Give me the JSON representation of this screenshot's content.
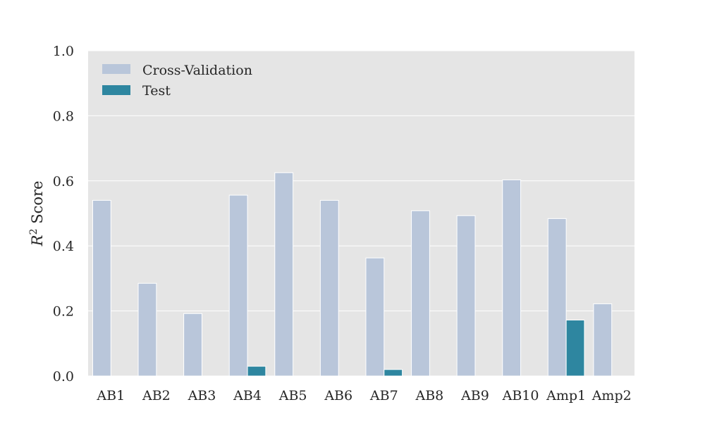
{
  "chart_data": {
    "type": "bar",
    "title": "",
    "xlabel": "",
    "ylabel_italic": "R",
    "ylabel_superscript": "2",
    "ylabel_rest": " Score",
    "ylim": [
      0,
      1.0
    ],
    "yticks": [
      "0.0",
      "0.2",
      "0.4",
      "0.6",
      "0.8",
      "1.0"
    ],
    "categories": [
      "AB1",
      "AB2",
      "AB3",
      "AB4",
      "AB5",
      "AB6",
      "AB7",
      "AB8",
      "AB9",
      "AB10",
      "Amp1",
      "Amp2"
    ],
    "series": [
      {
        "name": "Cross-Validation",
        "color": "#b9c6da",
        "values": [
          0.54,
          0.285,
          0.192,
          0.556,
          0.625,
          0.54,
          0.363,
          0.508,
          0.493,
          0.603,
          0.484,
          0.222
        ]
      },
      {
        "name": "Test",
        "color": "#2e86a0",
        "values": [
          null,
          null,
          null,
          0.03,
          null,
          null,
          0.02,
          null,
          null,
          null,
          0.172,
          null
        ]
      }
    ],
    "grid": true,
    "legend_position": "top-left",
    "background_color": "#e5e5e5",
    "grid_color": "#ffffff"
  }
}
